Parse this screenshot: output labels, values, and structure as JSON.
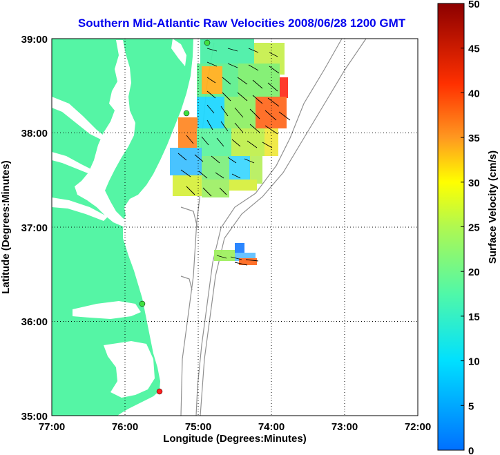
{
  "map": {
    "title": "Southern Mid-Atlantic Raw Velocities 2008/06/28 1200 GMT",
    "xlabel": "Longitude (Degrees:Minutes)",
    "ylabel": "Latitude (Degrees:Minutes)",
    "x_ticks": [
      "77:00",
      "76:00",
      "75:00",
      "74:00",
      "73:00",
      "72:00"
    ],
    "y_ticks": [
      "39:00",
      "38:00",
      "37:00",
      "36:00",
      "35:00"
    ],
    "lon_range": [
      -77,
      -72
    ],
    "lat_range": [
      35,
      39
    ],
    "colors": {
      "land": "#55f5a5",
      "grid": "#000000",
      "bathymetry": "#909090",
      "title": "#0000ee"
    }
  },
  "colorbar": {
    "label": "Surface Velocity (cm/s)",
    "ticks": [
      "0",
      "5",
      "10",
      "15",
      "20",
      "25",
      "30",
      "35",
      "40",
      "45",
      "50"
    ],
    "range": [
      0,
      50
    ]
  }
}
